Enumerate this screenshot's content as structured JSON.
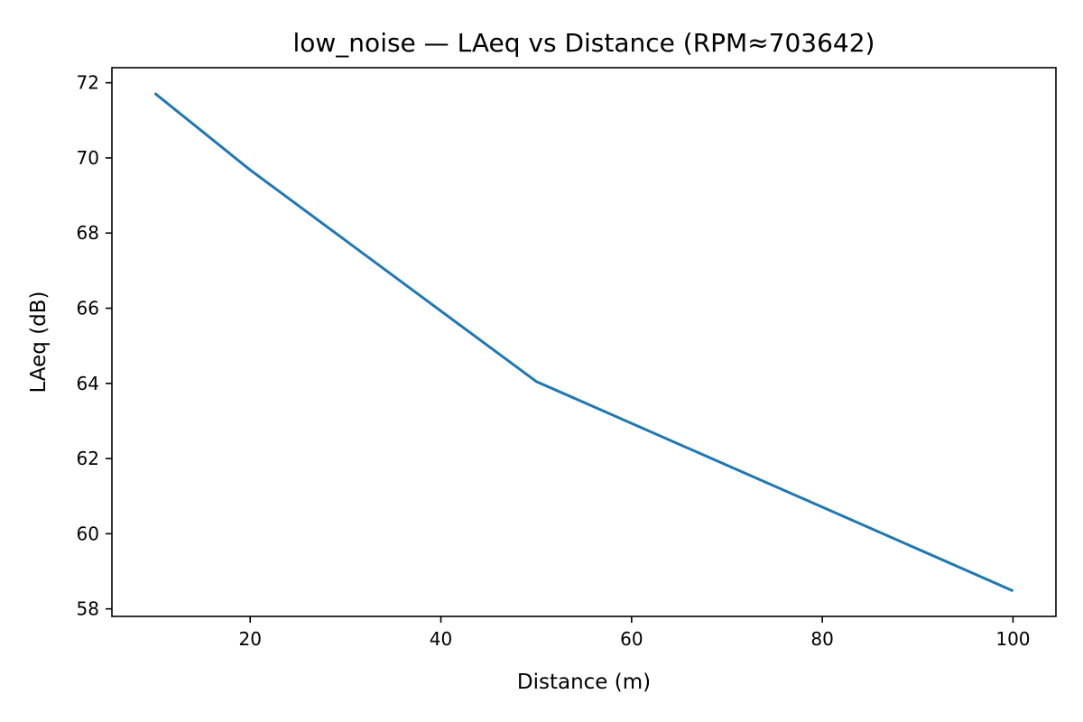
{
  "chart_data": {
    "type": "line",
    "title": "low_noise — LAeq vs Distance (RPM≈703642)",
    "xlabel": "Distance (m)",
    "ylabel": "LAeq (dB)",
    "xlim": [
      5.5,
      104.5
    ],
    "ylim": [
      57.8,
      72.4
    ],
    "xticks": [
      20,
      40,
      60,
      80,
      100
    ],
    "yticks": [
      58,
      60,
      62,
      64,
      66,
      68,
      70,
      72
    ],
    "grid": false,
    "legend": "none",
    "series": [
      {
        "color": "#1f77b4",
        "x": [
          10,
          20,
          50,
          100
        ],
        "y": [
          71.72,
          69.68,
          64.05,
          58.48
        ]
      }
    ]
  }
}
